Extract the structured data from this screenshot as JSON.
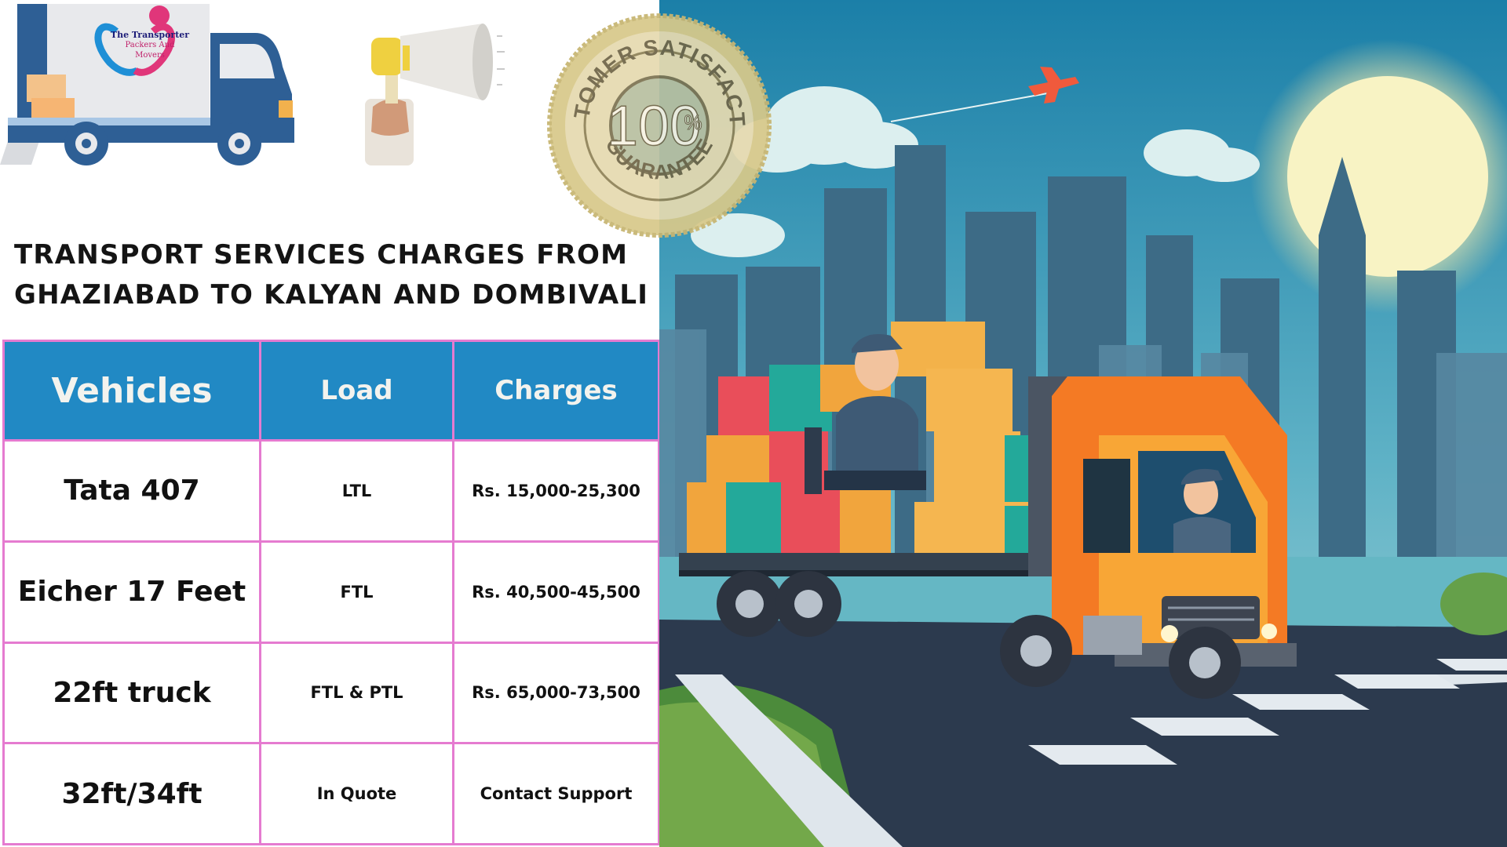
{
  "header": {
    "headline_line1": "TRANSPORT SERVICES CHARGES FROM",
    "headline_line2": "GHAZIABAD TO KALYAN AND DOMBIVALI"
  },
  "logo": {
    "line1": "The Transporter",
    "line2": "Packers And",
    "line3": "Movers"
  },
  "seal": {
    "text_top": "CUSTOMER SATISFACTION",
    "text_bottom": "GUARANTEE",
    "percent": "100",
    "percent_sign": "%"
  },
  "table": {
    "headers": [
      "Vehicles",
      "Load",
      "Charges"
    ],
    "rows": [
      {
        "vehicle": "Tata 407",
        "load": "LTL",
        "charges": "Rs. 15,000-25,300"
      },
      {
        "vehicle": "Eicher 17 Feet",
        "load": "FTL",
        "charges": "Rs. 40,500-45,500"
      },
      {
        "vehicle": "22ft truck",
        "load": "FTL & PTL",
        "charges": "Rs. 65,000-73,500"
      },
      {
        "vehicle": "32ft/34ft",
        "load": "In Quote",
        "charges": "Contact Support"
      }
    ]
  },
  "colors": {
    "table_header": "#2189c4",
    "table_border": "#e57bd0",
    "truck_body": "#f47a24",
    "sky_top": "#1b7fa8",
    "seal_gold": "#d8c98a"
  },
  "icons": {
    "moving_truck": "moving-truck-icon",
    "megaphone": "megaphone-icon",
    "seal": "satisfaction-seal-icon",
    "airplane": "airplane-icon"
  }
}
